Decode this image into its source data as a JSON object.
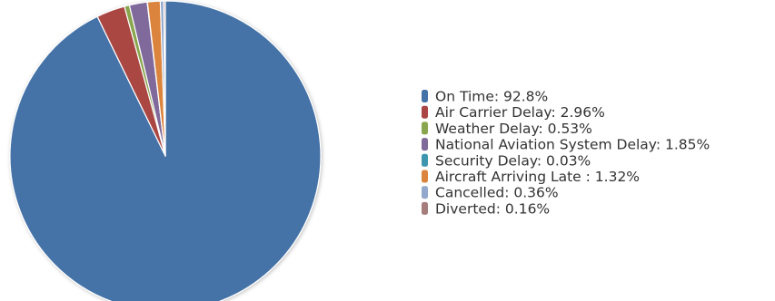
{
  "chart_data": {
    "type": "pie",
    "title": "",
    "legend_position": "right",
    "start_angle_deg": 0,
    "direction": "clockwise",
    "slices": [
      {
        "name": "On Time",
        "value": 92.8,
        "label": "On Time: 92.8%",
        "color": "#4572a7"
      },
      {
        "name": "Air Carrier Delay",
        "value": 2.96,
        "label": "Air Carrier Delay: 2.96%",
        "color": "#aa4643"
      },
      {
        "name": "Weather Delay",
        "value": 0.53,
        "label": "Weather Delay: 0.53%",
        "color": "#89a54e"
      },
      {
        "name": "National Aviation System Delay",
        "value": 1.85,
        "label": "National Aviation System Delay: 1.85%",
        "color": "#80699b"
      },
      {
        "name": "Security Delay",
        "value": 0.03,
        "label": "Security Delay: 0.03%",
        "color": "#3d96ae"
      },
      {
        "name": "Aircraft Arriving Late",
        "value": 1.32,
        "label": "Aircraft Arriving Late : 1.32%",
        "color": "#db843d"
      },
      {
        "name": "Cancelled",
        "value": 0.36,
        "label": "Cancelled: 0.36%",
        "color": "#92a8cd"
      },
      {
        "name": "Diverted",
        "value": 0.16,
        "label": "Diverted: 0.16%",
        "color": "#a47d7c"
      }
    ]
  }
}
